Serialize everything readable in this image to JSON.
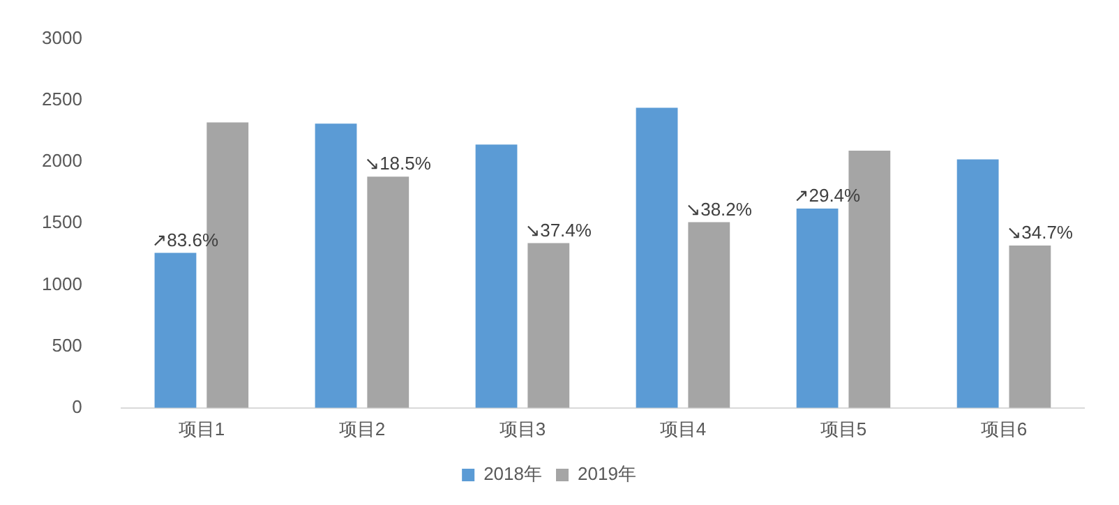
{
  "chart_data": {
    "type": "bar",
    "categories": [
      "项目1",
      "项目2",
      "项目3",
      "项目4",
      "项目5",
      "项目6"
    ],
    "series": [
      {
        "name": "2018年",
        "color": "#5b9bd5",
        "values": [
          1260,
          2310,
          2140,
          2440,
          1620,
          2020
        ]
      },
      {
        "name": "2019年",
        "color": "#a5a5a5",
        "values": [
          2320,
          1880,
          1340,
          1510,
          2090,
          1320
        ]
      }
    ],
    "ylim": [
      0,
      3000
    ],
    "yticks": [
      0,
      500,
      1000,
      1500,
      2000,
      2500,
      3000
    ],
    "grid": false,
    "legend": "bottom",
    "annotations": [
      {
        "text": "↗83.6%",
        "x": "项目1",
        "y": 1260
      },
      {
        "text": "↘18.5%",
        "x": "项目2",
        "y": 1880
      },
      {
        "text": "↘37.4%",
        "x": "项目3",
        "y": 1340
      },
      {
        "text": "↘38.2%",
        "x": "项目4",
        "y": 1510
      },
      {
        "text": "↗29.4%",
        "x": "项目5",
        "y": 1620
      },
      {
        "text": "↘34.7%",
        "x": "项目6",
        "y": 1320
      }
    ]
  }
}
